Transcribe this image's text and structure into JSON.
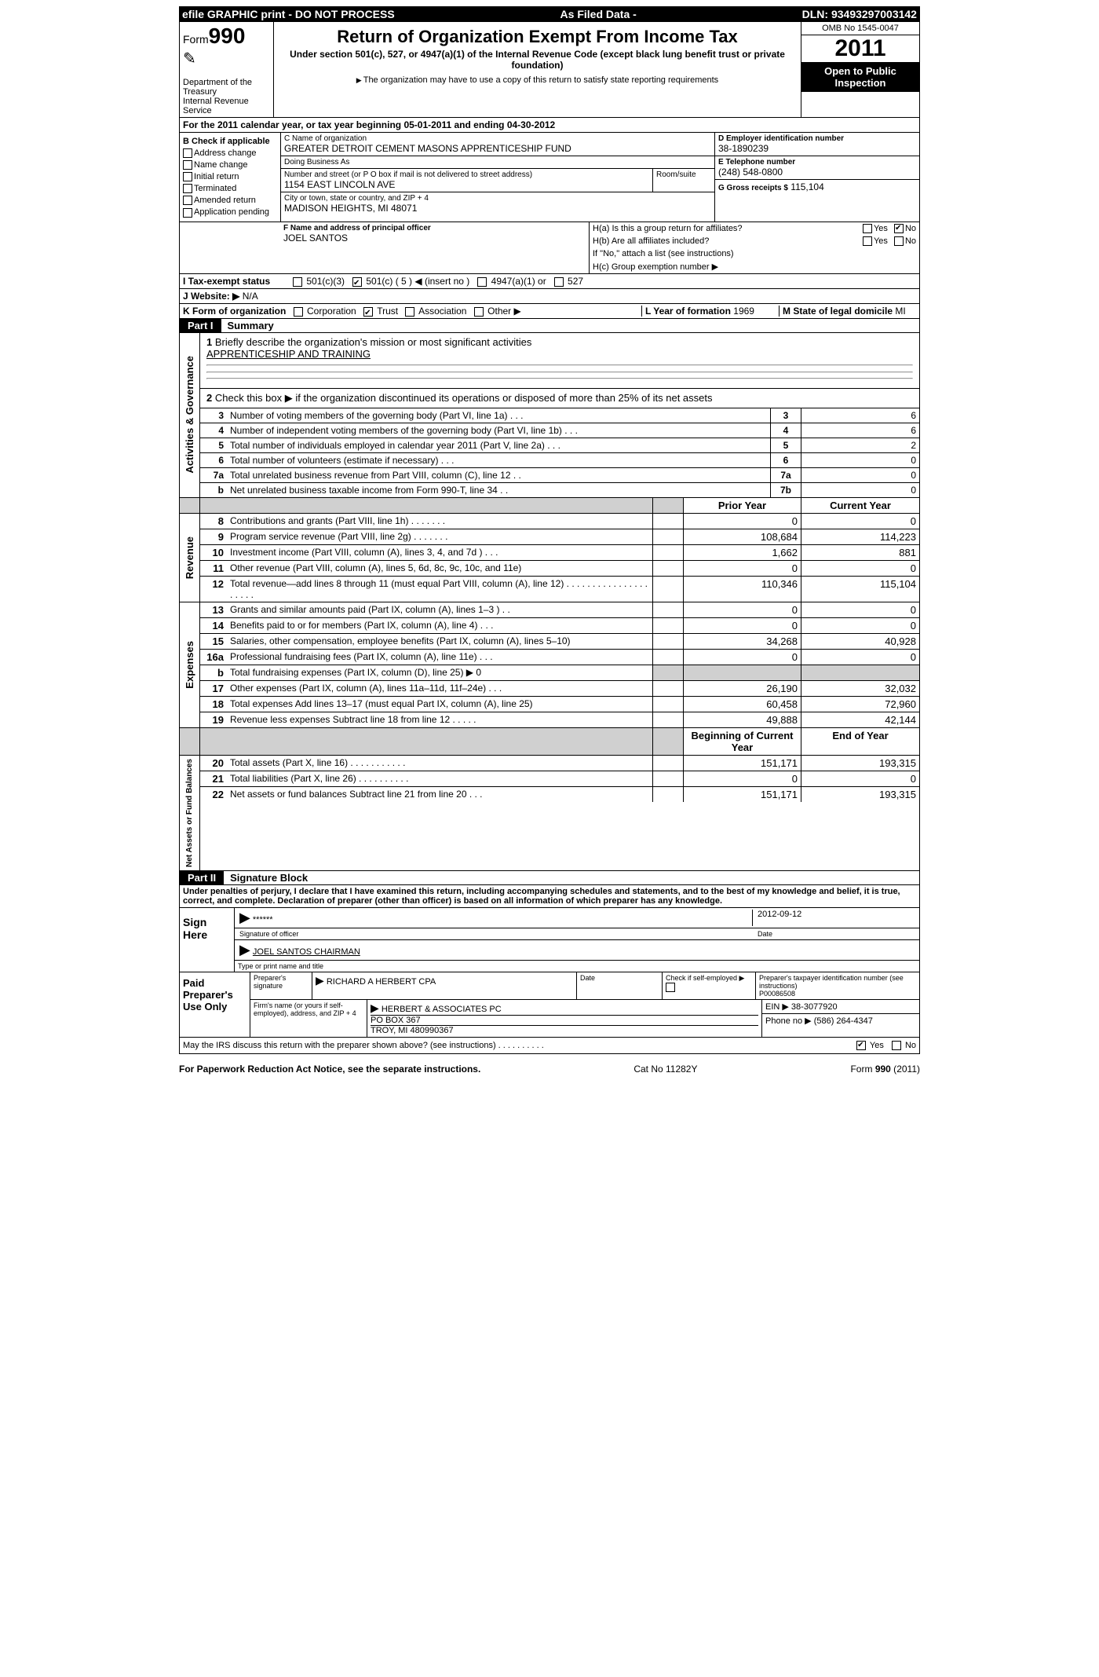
{
  "topbar": {
    "left": "efile GRAPHIC print - DO NOT PROCESS",
    "mid": "As Filed Data -",
    "right": "DLN: 93493297003142"
  },
  "head": {
    "form_label": "Form",
    "form_number": "990",
    "dept1": "Department of the Treasury",
    "dept2": "Internal Revenue Service",
    "title": "Return of Organization Exempt From Income Tax",
    "subtitle": "Under section 501(c), 527, or 4947(a)(1) of the Internal Revenue Code (except black lung benefit trust or private foundation)",
    "note": "The organization may have to use a copy of this return to satisfy state reporting requirements",
    "omb": "OMB No 1545-0047",
    "year": "2011",
    "inspect": "Open to Public Inspection"
  },
  "A": {
    "text": "For the 2011 calendar year, or tax year beginning 05-01-2011    and ending 04-30-2012"
  },
  "B": {
    "heading": "B Check if applicable",
    "items": [
      "Address change",
      "Name change",
      "Initial return",
      "Terminated",
      "Amended return",
      "Application pending"
    ]
  },
  "C": {
    "name_label": "C Name of organization",
    "name": "GREATER DETROIT CEMENT MASONS APPRENTICESHIP FUND",
    "dba_label": "Doing Business As",
    "dba": "",
    "street_label": "Number and street (or P O  box if mail is not delivered to street address)",
    "room_label": "Room/suite",
    "street": "1154 EAST LINCOLN AVE",
    "city_label": "City or town, state or country, and ZIP + 4",
    "city": "MADISON HEIGHTS, MI  48071"
  },
  "D": {
    "label": "D Employer identification number",
    "value": "38-1890239"
  },
  "E": {
    "label": "E Telephone number",
    "value": "(248) 548-0800"
  },
  "G": {
    "label": "G Gross receipts $",
    "value": "115,104"
  },
  "F": {
    "label": "F   Name and address of principal officer",
    "value": "JOEL SANTOS"
  },
  "H": {
    "a_label": "H(a)  Is this a group return for affiliates?",
    "b_label": "H(b)  Are all affiliates included?",
    "b_note": "If \"No,\" attach a list (see instructions)",
    "c_label": "H(c)   Group exemption number",
    "yes": "Yes",
    "no": "No"
  },
  "I": {
    "label": "I   Tax-exempt status",
    "opts": [
      "501(c)(3)",
      "501(c) ( 5 ) ◀ (insert no )",
      "4947(a)(1) or",
      "527"
    ]
  },
  "J": {
    "label": "J   Website: ▶",
    "value": "N/A"
  },
  "K": {
    "label": "K Form of organization",
    "opts": [
      "Corporation",
      "Trust",
      "Association",
      "Other ▶"
    ],
    "L_label": "L Year of formation",
    "L_val": "1969",
    "M_label": "M State of legal domicile",
    "M_val": "MI"
  },
  "part1": {
    "label": "Part I",
    "title": "Summary"
  },
  "summary": {
    "line1_label": "Briefly describe the organization's mission or most significant activities",
    "line1_value": "APPRENTICESHIP AND TRAINING",
    "line2": "Check this box ▶     if the organization discontinued its operations or disposed of more than 25% of its net assets",
    "rows": [
      {
        "n": "3",
        "d": "Number of voting members of the governing body (Part VI, line 1a)  .  .  .",
        "ln": "3",
        "v": "6"
      },
      {
        "n": "4",
        "d": "Number of independent voting members of the governing body (Part VI, line 1b)  .  .  .",
        "ln": "4",
        "v": "6"
      },
      {
        "n": "5",
        "d": "Total number of individuals employed in calendar year 2011 (Part V, line 2a)  .  .  .",
        "ln": "5",
        "v": "2"
      },
      {
        "n": "6",
        "d": "Total number of volunteers (estimate if necessary)  .  .  .",
        "ln": "6",
        "v": "0"
      },
      {
        "n": "7a",
        "d": "Total unrelated business revenue from Part VIII, column (C), line 12  .  .",
        "ln": "7a",
        "v": "0"
      },
      {
        "n": "b",
        "d": "Net unrelated business taxable income from Form 990-T, line 34  .  .",
        "ln": "7b",
        "v": "0"
      }
    ]
  },
  "fin_header": {
    "prior": "Prior Year",
    "current": "Current Year",
    "begin": "Beginning of Current Year",
    "end": "End of Year"
  },
  "revenue": {
    "label": "Revenue",
    "rows": [
      {
        "n": "8",
        "d": "Contributions and grants (Part VIII, line 1h)  .  .  .  .  .  .  .",
        "p": "0",
        "c": "0"
      },
      {
        "n": "9",
        "d": "Program service revenue (Part VIII, line 2g)  .  .  .  .  .  .  .",
        "p": "108,684",
        "c": "114,223"
      },
      {
        "n": "10",
        "d": "Investment income (Part VIII, column (A), lines 3, 4, and 7d )  .  .  .",
        "p": "1,662",
        "c": "881"
      },
      {
        "n": "11",
        "d": "Other revenue (Part VIII, column (A), lines 5, 6d, 8c, 9c, 10c, and 11e)",
        "p": "0",
        "c": "0"
      },
      {
        "n": "12",
        "d": "Total revenue—add lines 8 through 11 (must equal Part VIII, column (A), line 12)  .  .  .  .  .  .  .  .  .  .  .  .  .  .  .  .  .  .  .  .  .",
        "p": "110,346",
        "c": "115,104"
      }
    ]
  },
  "expenses": {
    "label": "Expenses",
    "rows": [
      {
        "n": "13",
        "d": "Grants and similar amounts paid (Part IX, column (A), lines 1–3 )  .  .",
        "p": "0",
        "c": "0"
      },
      {
        "n": "14",
        "d": "Benefits paid to or for members (Part IX, column (A), line 4)  .  .  .",
        "p": "0",
        "c": "0"
      },
      {
        "n": "15",
        "d": "Salaries, other compensation, employee benefits (Part IX, column (A), lines 5–10)",
        "p": "34,268",
        "c": "40,928"
      },
      {
        "n": "16a",
        "d": "Professional fundraising fees (Part IX, column (A), line 11e)  .  .  .",
        "p": "0",
        "c": "0"
      },
      {
        "n": "b",
        "d": "Total fundraising expenses (Part IX, column (D), line 25) ▶ 0",
        "p": "",
        "c": "",
        "gray": true
      },
      {
        "n": "17",
        "d": "Other expenses (Part IX, column (A), lines 11a–11d, 11f–24e)  .  .  .",
        "p": "26,190",
        "c": "32,032"
      },
      {
        "n": "18",
        "d": "Total expenses  Add lines 13–17 (must equal Part IX, column (A), line 25)",
        "p": "60,458",
        "c": "72,960"
      },
      {
        "n": "19",
        "d": "Revenue less expenses  Subtract line 18 from line 12  .  .  .  .  .",
        "p": "49,888",
        "c": "42,144"
      }
    ]
  },
  "netassets": {
    "label": "Net Assets or Fund Balances",
    "rows": [
      {
        "n": "20",
        "d": "Total assets (Part X, line 16)  .  .  .  .  .  .  .  .  .  .  .",
        "p": "151,171",
        "c": "193,315"
      },
      {
        "n": "21",
        "d": "Total liabilities (Part X, line 26)  .  .  .  .  .  .  .  .  .  .",
        "p": "0",
        "c": "0"
      },
      {
        "n": "22",
        "d": "Net assets or fund balances  Subtract line 21 from line 20  .  .  .",
        "p": "151,171",
        "c": "193,315"
      }
    ]
  },
  "part2": {
    "label": "Part II",
    "title": "Signature Block"
  },
  "perjury": "Under penalties of perjury, I declare that I have examined this return, including accompanying schedules and statements, and to the best of my knowledge and belief, it is true, correct, and complete. Declaration of preparer (other than officer) is based on all information of which preparer has any knowledge.",
  "sign": {
    "here": "Sign Here",
    "sig_stars": "******",
    "sig_label": "Signature of officer",
    "date": "2012-09-12",
    "date_label": "Date",
    "name": "JOEL SANTOS CHAIRMAN",
    "name_label": "Type or print name and title"
  },
  "prep": {
    "label": "Paid Preparer's Use Only",
    "sig_label": "Preparer's signature",
    "sig": "RICHARD A HERBERT CPA",
    "date_label": "Date",
    "self_label": "Check if self-employed ▶",
    "ptin_label": "Preparer's taxpayer identification number (see instructions)",
    "ptin": "P00086508",
    "firm_label": "Firm's name (or yours if self-employed), address, and ZIP + 4",
    "firm": "HERBERT & ASSOCIATES PC",
    "addr1": "PO BOX 367",
    "addr2": "TROY, MI  480990367",
    "ein_label": "EIN ▶",
    "ein": "38-3077920",
    "phone_label": "Phone no  ▶",
    "phone": "(586) 264-4347"
  },
  "discuss": {
    "text": "May the IRS discuss this return with the preparer shown above? (see instructions)  .  .  .  .  .  .  .  .  .  .",
    "yes": "Yes",
    "no": "No"
  },
  "footer": {
    "left": "For Paperwork Reduction Act Notice, see the separate instructions.",
    "mid": "Cat No 11282Y",
    "right": "Form 990 (2011)"
  },
  "colors": {
    "black": "#000000",
    "white": "#ffffff",
    "gray": "#d0d0d0"
  }
}
